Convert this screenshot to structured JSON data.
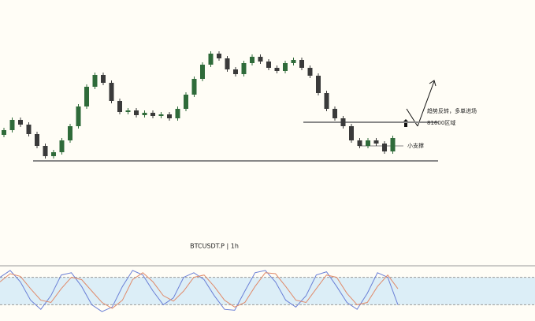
{
  "chart_data": [
    {
      "type": "candlestick",
      "up_color": "#2f6b3a",
      "down_color": "#3a3a3a",
      "ylim": [
        79500,
        85000
      ],
      "open": [
        81200,
        81350,
        81675,
        81525,
        81225,
        80850,
        80525,
        80650,
        81025,
        81475,
        82100,
        82725,
        83100,
        82850,
        82275,
        81925,
        81975,
        81825,
        81900,
        81800,
        81850,
        81725,
        82025,
        82475,
        82975,
        83425,
        83775,
        83625,
        83275,
        83125,
        83475,
        83675,
        83525,
        83325,
        83225,
        83475,
        83575,
        83325,
        83075,
        82525,
        82025,
        81725,
        81475,
        81025,
        80850,
        81025,
        80925,
        80675
      ],
      "high": [
        81425,
        81750,
        81750,
        81600,
        81300,
        80925,
        80725,
        81100,
        81550,
        82175,
        82800,
        83175,
        83175,
        82925,
        82350,
        82050,
        82050,
        81975,
        81975,
        81925,
        81925,
        82100,
        82550,
        83050,
        83500,
        83850,
        83850,
        83700,
        83350,
        83550,
        83750,
        83750,
        83600,
        83400,
        83550,
        83650,
        83650,
        83400,
        83150,
        82600,
        82100,
        81800,
        81550,
        81100,
        81100,
        81100,
        81000,
        81175
      ],
      "low": [
        81125,
        81275,
        81450,
        81150,
        80775,
        80450,
        80450,
        80575,
        80950,
        81400,
        82025,
        82650,
        82775,
        82200,
        81850,
        81850,
        81750,
        81750,
        81725,
        81725,
        81650,
        81650,
        81950,
        82400,
        82900,
        83350,
        83550,
        83200,
        83050,
        83050,
        83400,
        83450,
        83250,
        83150,
        83150,
        83400,
        83250,
        83000,
        82450,
        81950,
        81650,
        81400,
        80950,
        80775,
        80775,
        80850,
        80600,
        80600
      ],
      "close": [
        81350,
        81675,
        81525,
        81225,
        80850,
        80525,
        80650,
        81025,
        81475,
        82100,
        82725,
        83100,
        82850,
        82275,
        81925,
        81975,
        81825,
        81900,
        81800,
        81850,
        81725,
        82025,
        82475,
        82975,
        83425,
        83775,
        83625,
        83275,
        83125,
        83475,
        83675,
        83525,
        83325,
        83225,
        83475,
        83575,
        83325,
        83075,
        82525,
        82025,
        81725,
        81475,
        81025,
        80850,
        81025,
        80925,
        80675,
        81100
      ],
      "levels": [
        {
          "value": 81600,
          "label": "81600区域"
        },
        {
          "value": 80850,
          "label": "小支撑"
        },
        {
          "value": 80375
        }
      ],
      "annotation": "趋势反转，多单进场",
      "title": "BTCUSDT.P | 1h"
    },
    {
      "type": "stochastic",
      "ylim": [
        0,
        100
      ],
      "bands": [
        20,
        80
      ],
      "band_color": "#dceef7",
      "series": [
        {
          "color": "#6a7fd6",
          "values": [
            80,
            95,
            70,
            30,
            10,
            40,
            85,
            90,
            60,
            20,
            5,
            15,
            60,
            95,
            85,
            50,
            20,
            35,
            80,
            90,
            75,
            40,
            10,
            8,
            50,
            90,
            95,
            70,
            30,
            15,
            40,
            85,
            92,
            60,
            25,
            10,
            45,
            90,
            80,
            20
          ]
        },
        {
          "color": "#e08a6a",
          "values": [
            70,
            88,
            82,
            55,
            30,
            25,
            55,
            80,
            75,
            50,
            25,
            12,
            30,
            75,
            90,
            70,
            40,
            28,
            50,
            80,
            85,
            60,
            30,
            15,
            25,
            60,
            90,
            88,
            60,
            30,
            25,
            55,
            85,
            80,
            45,
            20,
            25,
            60,
            85,
            55
          ]
        }
      ]
    }
  ]
}
